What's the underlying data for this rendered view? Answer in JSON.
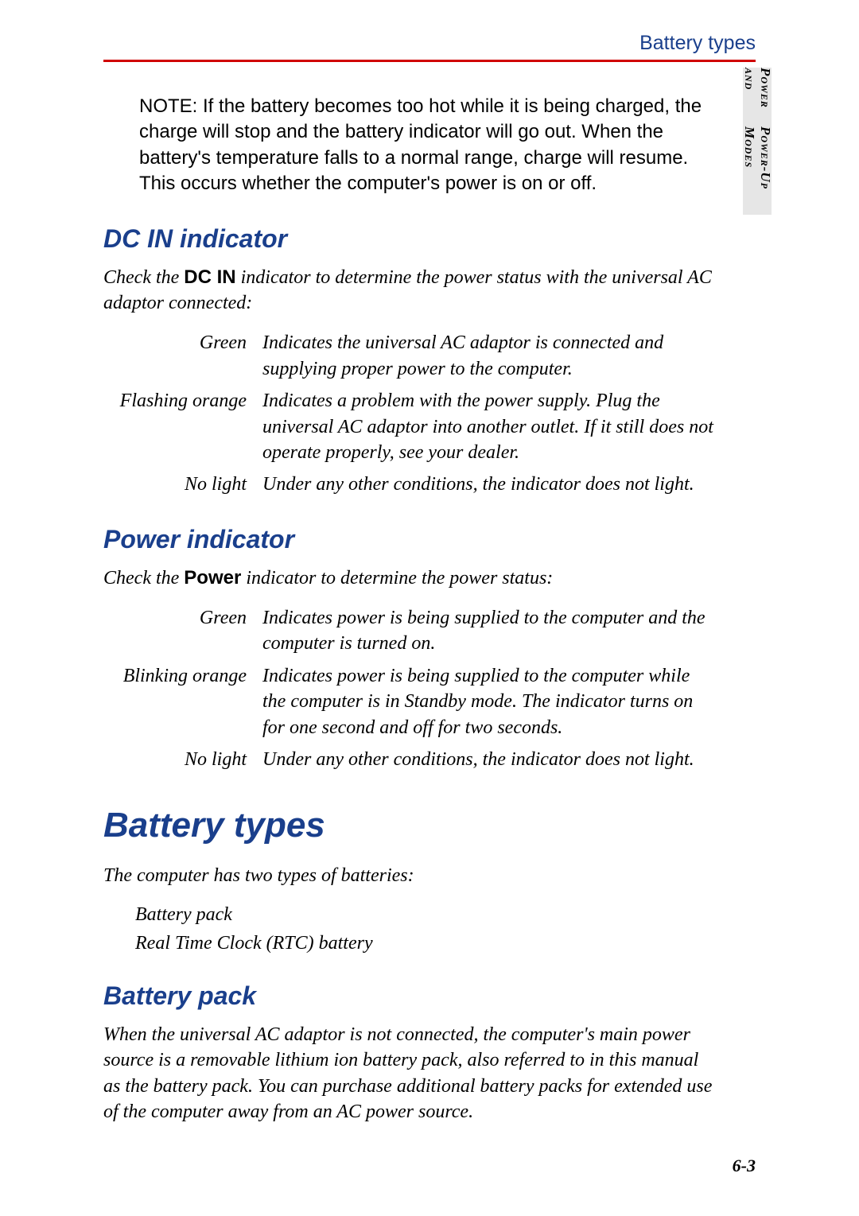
{
  "header": {
    "title": "Battery types"
  },
  "side_tab": {
    "line1": "Power and",
    "line2": "Power-Up Modes"
  },
  "note": {
    "label": "NOTE:",
    "text": "If the battery becomes too hot while it is being charged, the charge will stop and the battery indicator will go out. When the battery's temperature falls to a normal range, charge will resume. This occurs whether the computer's power is on or off."
  },
  "sections": {
    "dc_in": {
      "heading": "DC IN indicator",
      "intro_pre": "Check the ",
      "intro_bold": "DC IN",
      "intro_post": " indicator to determine the power status with the universal AC adaptor connected:",
      "rows": [
        {
          "label": "Green",
          "desc": "Indicates the universal AC adaptor is connected and supplying proper power to the computer."
        },
        {
          "label": "Flashing orange",
          "desc": "Indicates a problem with the power supply. Plug the universal AC adaptor into another outlet. If it still does not operate properly, see your dealer."
        },
        {
          "label": "No light",
          "desc": "Under any other conditions, the indicator does not light."
        }
      ]
    },
    "power": {
      "heading": "Power indicator",
      "intro_pre": "Check the ",
      "intro_bold": "Power",
      "intro_post": " indicator to determine the power status:",
      "rows": [
        {
          "label": "Green",
          "desc": "Indicates power is being supplied to the computer and the computer is turned on."
        },
        {
          "label": "Blinking orange",
          "desc": "Indicates power is being supplied to the computer while the computer is in Standby mode. The indicator turns on for one second and off for two seconds."
        },
        {
          "label": "No light",
          "desc": "Under any other conditions, the indicator does not light."
        }
      ]
    },
    "battery_types": {
      "heading": "Battery types",
      "intro": "The computer has two types of batteries:",
      "items": [
        "Battery pack",
        "Real Time Clock (RTC) battery"
      ]
    },
    "battery_pack": {
      "heading": "Battery pack",
      "body": "When the universal AC adaptor is not connected, the computer's main power source is a removable lithium ion battery pack, also referred to in this manual as the battery pack. You can purchase additional battery packs for extended use of the computer away from an AC power source."
    }
  },
  "page_number": "6-3",
  "colors": {
    "heading": "#1a3f8c",
    "rule": "#d00000",
    "tab_bg": "#e6e6e6",
    "text": "#000000",
    "background": "#ffffff"
  }
}
